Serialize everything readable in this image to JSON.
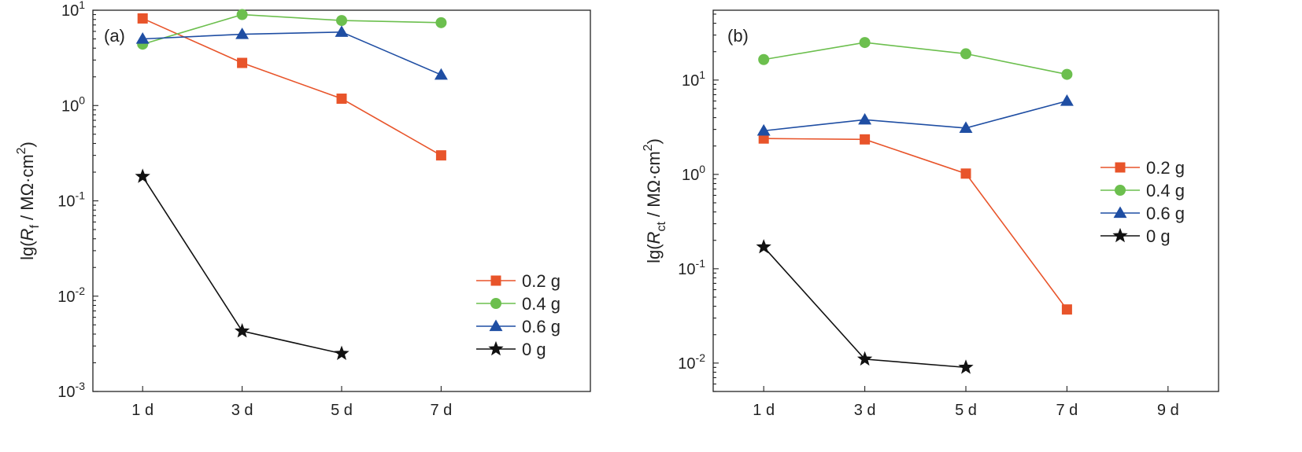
{
  "chart_data": [
    {
      "type": "line",
      "panel_label": "(a)",
      "ylabel_prefix": "lg(",
      "ylabel_symbol": "R",
      "ylabel_subscript": "f",
      "ylabel_mid": " / MΩ·cm",
      "ylabel_sup": "2",
      "ylabel_suffix": ")",
      "yscale": "log",
      "ylim": [
        0.001,
        10
      ],
      "yticks": [
        {
          "value": 0.001,
          "base": "10",
          "exp": "-3"
        },
        {
          "value": 0.01,
          "base": "10",
          "exp": "-2"
        },
        {
          "value": 0.1,
          "base": "10",
          "exp": "-1"
        },
        {
          "value": 1,
          "base": "10",
          "exp": "0"
        },
        {
          "value": 10,
          "base": "10",
          "exp": "1"
        }
      ],
      "x_categories": [
        "1 d",
        "3 d",
        "5 d",
        "7 d"
      ],
      "xlim_slots": 5,
      "legend_position": "lower-right",
      "series": [
        {
          "name": "0.2 g",
          "color": "#e8542a",
          "marker": "square",
          "values": [
            8.2,
            2.8,
            1.18,
            0.3
          ]
        },
        {
          "name": "0.4 g",
          "color": "#6cbf4e",
          "marker": "circle",
          "values": [
            4.4,
            9.0,
            7.8,
            7.4
          ]
        },
        {
          "name": "0.6 g",
          "color": "#1f4ea3",
          "marker": "triangle",
          "values": [
            5.0,
            5.6,
            5.9,
            2.1
          ]
        },
        {
          "name": "0 g",
          "color": "#111111",
          "marker": "star",
          "values": [
            0.18,
            0.0043,
            0.0025,
            null
          ]
        }
      ]
    },
    {
      "type": "line",
      "panel_label": "(b)",
      "ylabel_prefix": "lg(",
      "ylabel_symbol": "R",
      "ylabel_subscript": "ct",
      "ylabel_mid": " / MΩ·cm",
      "ylabel_sup": "2",
      "ylabel_suffix": ")",
      "yscale": "log",
      "ylim": [
        0.005,
        55
      ],
      "yticks": [
        {
          "value": 0.01,
          "base": "10",
          "exp": "-2"
        },
        {
          "value": 0.1,
          "base": "10",
          "exp": "-1"
        },
        {
          "value": 1,
          "base": "10",
          "exp": "0"
        },
        {
          "value": 10,
          "base": "10",
          "exp": "1"
        }
      ],
      "x_categories": [
        "1 d",
        "3 d",
        "5 d",
        "7 d",
        "9 d"
      ],
      "xlim_slots": 5,
      "legend_position": "center-right",
      "series": [
        {
          "name": "0.2 g",
          "color": "#e8542a",
          "marker": "square",
          "values": [
            2.4,
            2.35,
            1.02,
            0.037
          ]
        },
        {
          "name": "0.4 g",
          "color": "#6cbf4e",
          "marker": "circle",
          "values": [
            16.5,
            25.0,
            19.0,
            11.5
          ]
        },
        {
          "name": "0.6 g",
          "color": "#1f4ea3",
          "marker": "triangle",
          "values": [
            2.9,
            3.8,
            3.1,
            6.0
          ]
        },
        {
          "name": "0 g",
          "color": "#111111",
          "marker": "star",
          "values": [
            0.17,
            0.011,
            0.009,
            null
          ]
        }
      ]
    }
  ]
}
